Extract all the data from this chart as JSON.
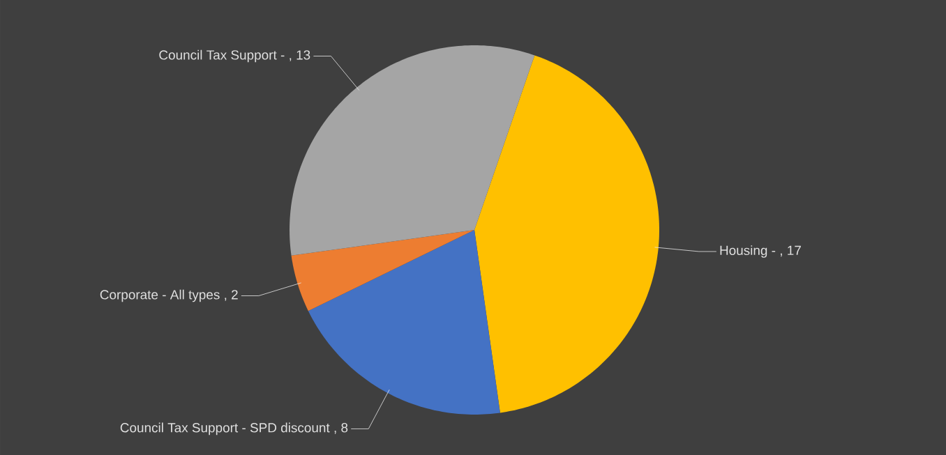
{
  "chart_data": {
    "type": "pie",
    "categories": [
      "Housing  -",
      "Council Tax Support  - SPD discount",
      "Corporate  - All types",
      "Council Tax Support  -"
    ],
    "values": [
      17,
      8,
      2,
      13
    ],
    "value_labels": [
      ", 17",
      ", 8",
      ", 2",
      ", 13"
    ],
    "colors": [
      "#ffc000",
      "#4472c4",
      "#ed7d31",
      "#a5a5a5"
    ]
  }
}
